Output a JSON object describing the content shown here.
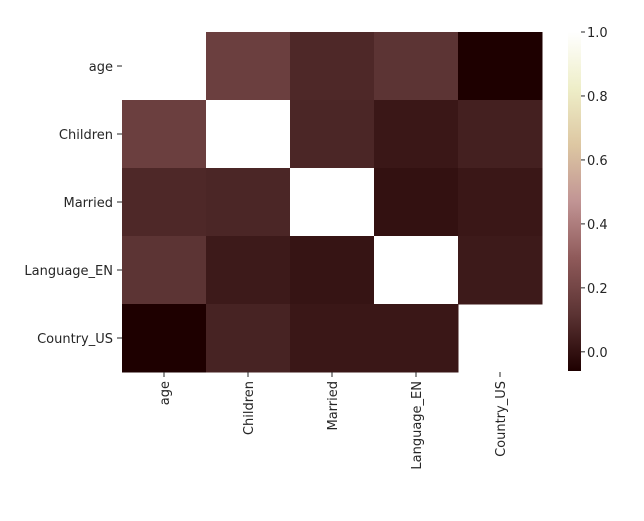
{
  "chart_data": {
    "type": "heatmap",
    "title": "",
    "xlabel": "",
    "ylabel": "",
    "rows": [
      "age",
      "Children",
      "Married",
      "Language_EN",
      "Country_US"
    ],
    "columns": [
      "age",
      "Children",
      "Married",
      "Language_EN",
      "Country_US"
    ],
    "values": [
      [
        null,
        0.17,
        0.08,
        0.12,
        -0.06
      ],
      [
        0.17,
        1.0,
        0.07,
        0.02,
        0.05
      ],
      [
        0.08,
        0.07,
        1.0,
        0.0,
        0.02
      ],
      [
        0.12,
        0.03,
        0.01,
        1.0,
        0.03
      ],
      [
        -0.06,
        0.06,
        0.02,
        0.02,
        null
      ]
    ],
    "colorbar": {
      "range": [
        -0.06,
        1.0
      ],
      "ticks": [
        0.0,
        0.2,
        0.4,
        0.6,
        0.8,
        1.0
      ],
      "tick_labels": [
        "0.0",
        "0.2",
        "0.4",
        "0.6",
        "0.8",
        "1.0"
      ],
      "colormap": "pink",
      "stops": [
        "#1e0000",
        "#5b3333",
        "#8f5a5a",
        "#c19494",
        "#ddc7a2",
        "#eeeec8",
        "#ffffff"
      ]
    },
    "grid": false,
    "legend": "none"
  }
}
